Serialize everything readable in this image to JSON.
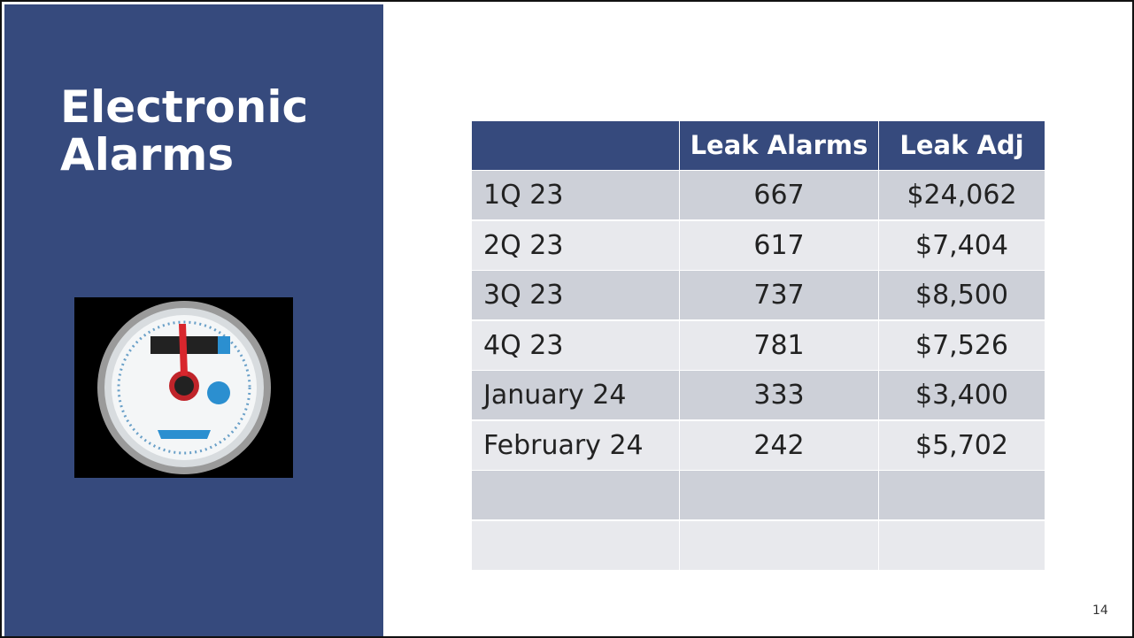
{
  "slide": {
    "title": [
      "Electronic",
      "Alarms"
    ],
    "page_number": "14"
  },
  "table": {
    "header": [
      "Leak Alarms",
      "Leak Adj"
    ],
    "rows": [
      [
        "1Q 23",
        "667",
        "$24,062"
      ],
      [
        "2Q 23",
        "617",
        "$7,404"
      ],
      [
        "3Q 23",
        "737",
        "$8,500"
      ],
      [
        "4Q 23",
        "781",
        "$7,526"
      ],
      [
        "January 24",
        "333",
        "$3,400"
      ],
      [
        "February 24",
        "242",
        "$5,702"
      ]
    ]
  }
}
